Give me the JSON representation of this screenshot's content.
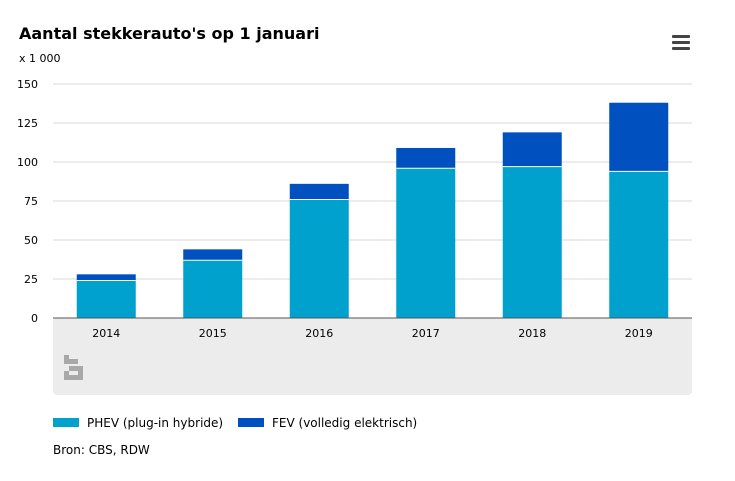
{
  "title": "Aantal stekkerauto's op 1 januari",
  "unit_label": "x 1 000",
  "menu_icon": "hamburger-menu-icon",
  "logo_icon": "cbs-logo-icon",
  "source": "Bron: CBS, RDW",
  "colors": {
    "phev": "#00a1cd",
    "fev": "#0050c0",
    "grid": "#d9d9d9",
    "axis": "#555555",
    "panel": "#ececec"
  },
  "chart_data": {
    "type": "bar",
    "stacked": true,
    "categories": [
      "2014",
      "2015",
      "2016",
      "2017",
      "2018",
      "2019"
    ],
    "series": [
      {
        "name": "PHEV (plug-in hybride)",
        "values": [
          24,
          37,
          76,
          96,
          97,
          94
        ]
      },
      {
        "name": "FEV (volledig elektrisch)",
        "values": [
          4,
          7,
          10,
          13,
          22,
          44
        ]
      }
    ],
    "ylim": [
      0,
      150
    ],
    "yticks": [
      0,
      25,
      50,
      75,
      100,
      125,
      150
    ],
    "grid": true,
    "legend": "bottom-left"
  }
}
